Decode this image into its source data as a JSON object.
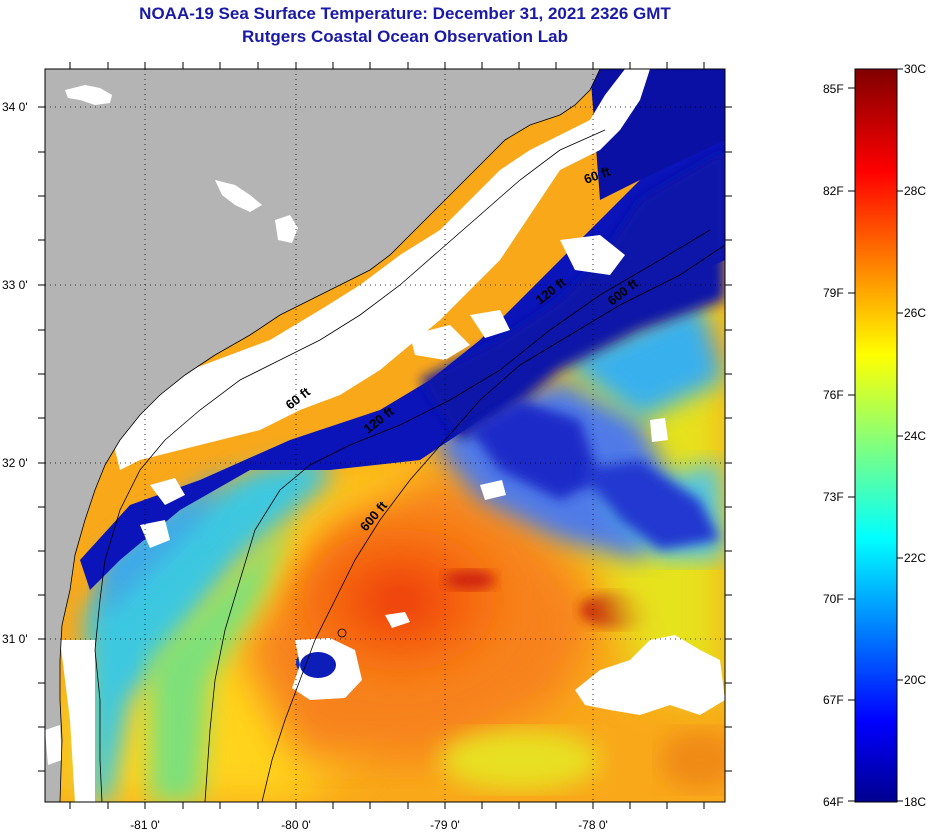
{
  "header": {
    "title": "NOAA-19 Sea Surface Temperature:  December 31, 2021 2326 GMT",
    "subtitle": "Rutgers Coastal Ocean Observation Lab"
  },
  "map": {
    "lat_labels": [
      "34 0'",
      "33 0'",
      "32 0'",
      "31 0'"
    ],
    "lon_labels": [
      "-81 0'",
      "-80 0'",
      "-79 0'",
      "-78 0'"
    ],
    "contour_labels": [
      "60 ft",
      "120 ft",
      "600 ft",
      "60 ft",
      "120 ft",
      "600 ft"
    ],
    "land_color": "#b4b4b4",
    "cloud_color": "#ffffff"
  },
  "colorbar": {
    "fahrenheit_labels": [
      "85F",
      "82F",
      "79F",
      "76F",
      "73F",
      "70F",
      "67F",
      "64F"
    ],
    "celsius_labels": [
      "30C",
      "28C",
      "26C",
      "24C",
      "22C",
      "20C",
      "18C"
    ],
    "range_c": [
      18,
      30
    ],
    "colormap": "jet"
  }
}
